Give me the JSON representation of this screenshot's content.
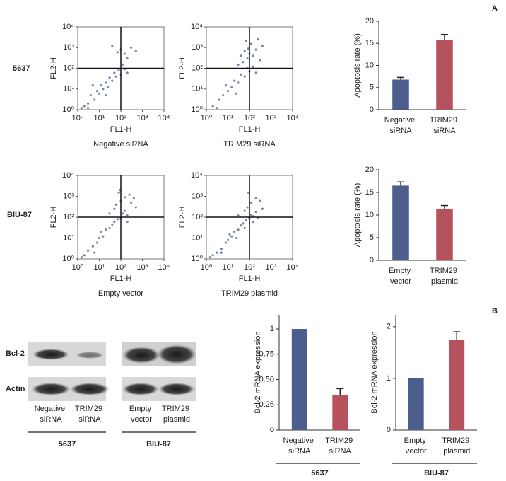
{
  "panel_labels": [
    "A",
    "B"
  ],
  "row_labels": [
    "5637",
    "BIU-87"
  ],
  "blot": {
    "rows": [
      "Bcl-2",
      "Actin"
    ],
    "lanes": [
      "Negative siRNA",
      "TRIM29 siRNA",
      "Empty vector",
      "TRIM29 plasmid"
    ],
    "groups": [
      "5637",
      "BIU-87"
    ]
  },
  "chart_data": [
    {
      "type": "scatter",
      "xlabel": "FL1-H",
      "ylabel": "FL2-H",
      "caption": "Negative siRNA",
      "xscale": "log",
      "yscale": "log",
      "color": "#5b6f9f",
      "xlim": [
        1,
        10000
      ],
      "ylim": [
        1,
        10000
      ],
      "xticks": [
        {
          "value": 1,
          "label": "10⁰"
        },
        {
          "value": 10,
          "label": "10¹"
        },
        {
          "value": 100,
          "label": "10²"
        },
        {
          "value": 1000,
          "label": "10³"
        },
        {
          "value": 10000,
          "label": "10⁴"
        }
      ],
      "yticks": [
        {
          "value": 1,
          "label": "10⁰"
        },
        {
          "value": 10,
          "label": "10¹"
        },
        {
          "value": 100,
          "label": "10²"
        },
        {
          "value": 1000,
          "label": "10³"
        },
        {
          "value": 10000,
          "label": "10⁴"
        }
      ],
      "thresholds": {
        "x": 100,
        "y": 100
      },
      "x": [
        2,
        3,
        4,
        6,
        8,
        10,
        12,
        15,
        20,
        25,
        30,
        40,
        50,
        60,
        80,
        100,
        120,
        150,
        200,
        70,
        100,
        150,
        300,
        500,
        40,
        5,
        3,
        1.5,
        200,
        20
      ],
      "values": [
        1.5,
        2,
        5,
        3,
        8,
        6,
        15,
        10,
        20,
        12,
        35,
        25,
        60,
        40,
        80,
        50,
        150,
        90,
        300,
        600,
        800,
        500,
        1000,
        700,
        1200,
        15,
        1.2,
        1.2,
        60,
        5
      ]
    },
    {
      "type": "scatter",
      "xlabel": "FL1-H",
      "ylabel": "FL2-H",
      "caption": "TRIM29 siRNA",
      "xscale": "log",
      "yscale": "log",
      "color": "#5b6f9f",
      "xlim": [
        1,
        10000
      ],
      "ylim": [
        1,
        10000
      ],
      "xticks": [
        {
          "value": 1,
          "label": "10⁰"
        },
        {
          "value": 10,
          "label": "10¹"
        },
        {
          "value": 100,
          "label": "10²"
        },
        {
          "value": 1000,
          "label": "10³"
        },
        {
          "value": 10000,
          "label": "10⁴"
        }
      ],
      "yticks": [
        {
          "value": 1,
          "label": "10⁰"
        },
        {
          "value": 10,
          "label": "10¹"
        },
        {
          "value": 100,
          "label": "10²"
        },
        {
          "value": 1000,
          "label": "10³"
        },
        {
          "value": 10000,
          "label": "10⁴"
        }
      ],
      "thresholds": {
        "x": 100,
        "y": 100
      },
      "x": [
        2,
        4,
        6,
        10,
        15,
        20,
        30,
        40,
        60,
        80,
        100,
        50,
        80,
        100,
        150,
        200,
        120,
        60,
        300,
        400,
        30,
        150,
        200,
        8,
        3,
        25,
        70,
        250,
        90,
        40
      ],
      "values": [
        1.5,
        3,
        5,
        8,
        12,
        25,
        20,
        50,
        40,
        100,
        70,
        200,
        300,
        500,
        400,
        800,
        1500,
        700,
        250,
        1200,
        150,
        120,
        60,
        15,
        1.2,
        6,
        2000,
        2500,
        900,
        400
      ]
    },
    {
      "type": "bar",
      "ylabel": "Apoptosis rate (%)",
      "categories": [
        "Negative siRNA",
        "TRIM29 siRNA"
      ],
      "values": [
        6.8,
        15.8
      ],
      "errors": [
        0.5,
        1.2
      ],
      "colors": [
        "#4b5e8e",
        "#b5525e"
      ],
      "ylim": [
        0,
        20
      ],
      "yticks": [
        0,
        5,
        10,
        15,
        20
      ]
    },
    {
      "type": "scatter",
      "xlabel": "FL1-H",
      "ylabel": "FL2-H",
      "caption": "Empty vector",
      "xscale": "log",
      "yscale": "log",
      "color": "#5b6f9f",
      "xlim": [
        1,
        10000
      ],
      "ylim": [
        1,
        10000
      ],
      "xticks": [
        {
          "value": 1,
          "label": "10⁰"
        },
        {
          "value": 10,
          "label": "10¹"
        },
        {
          "value": 100,
          "label": "10²"
        },
        {
          "value": 1000,
          "label": "10³"
        },
        {
          "value": 10000,
          "label": "10⁴"
        }
      ],
      "yticks": [
        {
          "value": 1,
          "label": "10⁰"
        },
        {
          "value": 10,
          "label": "10¹"
        },
        {
          "value": 100,
          "label": "10²"
        },
        {
          "value": 1000,
          "label": "10³"
        },
        {
          "value": 10000,
          "label": "10⁴"
        }
      ],
      "thresholds": {
        "x": 100,
        "y": 100
      },
      "x": [
        2,
        3,
        5,
        8,
        10,
        15,
        20,
        30,
        40,
        50,
        70,
        100,
        120,
        150,
        200,
        60,
        100,
        150,
        250,
        400,
        80,
        300,
        30,
        1.5,
        12,
        200,
        500,
        90,
        50,
        6
      ],
      "values": [
        1.5,
        2.5,
        4,
        6,
        10,
        12,
        25,
        30,
        45,
        60,
        80,
        90,
        150,
        200,
        120,
        400,
        600,
        900,
        1200,
        800,
        1500,
        500,
        150,
        1.2,
        20,
        60,
        300,
        2000,
        250,
        2
      ]
    },
    {
      "type": "scatter",
      "xlabel": "FL1-H",
      "ylabel": "FL2-H",
      "caption": "TRIM29 plasmid",
      "xscale": "log",
      "yscale": "log",
      "color": "#5b6f9f",
      "xlim": [
        1,
        10000
      ],
      "ylim": [
        1,
        10000
      ],
      "xticks": [
        {
          "value": 1,
          "label": "10⁰"
        },
        {
          "value": 10,
          "label": "10¹"
        },
        {
          "value": 100,
          "label": "10²"
        },
        {
          "value": 1000,
          "label": "10³"
        },
        {
          "value": 10000,
          "label": "10⁴"
        }
      ],
      "yticks": [
        {
          "value": 1,
          "label": "10⁰"
        },
        {
          "value": 10,
          "label": "10¹"
        },
        {
          "value": 100,
          "label": "10²"
        },
        {
          "value": 1000,
          "label": "10³"
        },
        {
          "value": 10000,
          "label": "10⁴"
        }
      ],
      "thresholds": {
        "x": 100,
        "y": 100
      },
      "x": [
        2,
        3,
        5,
        8,
        10,
        15,
        20,
        30,
        40,
        50,
        70,
        100,
        120,
        150,
        200,
        80,
        120,
        200,
        300,
        30,
        60,
        250,
        1.5,
        12,
        400,
        5,
        90,
        150,
        25,
        60
      ],
      "values": [
        1.5,
        2,
        3,
        6,
        8,
        12,
        20,
        25,
        40,
        50,
        70,
        90,
        130,
        110,
        180,
        300,
        500,
        800,
        600,
        120,
        200,
        90,
        1.2,
        15,
        250,
        2,
        1500,
        60,
        10,
        30
      ]
    },
    {
      "type": "bar",
      "ylabel": "Apoptosis rate (%)",
      "categories": [
        "Empty vector",
        "TRIM29 plasmid"
      ],
      "values": [
        16.5,
        11.4
      ],
      "errors": [
        0.8,
        0.7
      ],
      "colors": [
        "#4b5e8e",
        "#b5525e"
      ],
      "ylim": [
        0,
        20
      ],
      "yticks": [
        0,
        5,
        10,
        15,
        20
      ]
    },
    {
      "type": "bar",
      "ylabel": "Bcl-2 mRNA expression",
      "group_label": "5637",
      "categories": [
        "Negative siRNA",
        "TRIM29 siRNA"
      ],
      "values": [
        1,
        0.35
      ],
      "errors": [
        null,
        0.06
      ],
      "colors": [
        "#4b5e8e",
        "#b5525e"
      ],
      "ylim": [
        0,
        1.14
      ],
      "yticks": [
        0,
        0.25,
        {
          "value": 0.5,
          "label": "0.50"
        },
        0.75,
        1
      ]
    },
    {
      "type": "bar",
      "ylabel": "Bcl-2 mRNA expression",
      "group_label": "BIU-87",
      "categories": [
        "Empty vector",
        "TRIM29 plasmid"
      ],
      "values": [
        1,
        1.75
      ],
      "errors": [
        null,
        0.15
      ],
      "colors": [
        "#4b5e8e",
        "#b5525e"
      ],
      "ylim": [
        0,
        2.23
      ],
      "yticks": [
        0,
        1,
        2
      ]
    }
  ]
}
